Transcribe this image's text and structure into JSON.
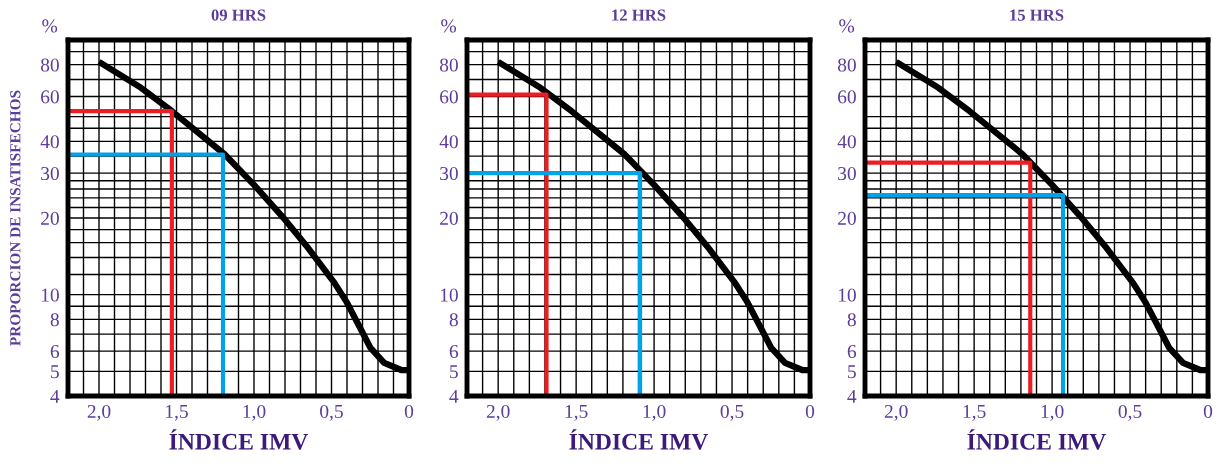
{
  "chart_data": [
    {
      "type": "line",
      "title": "09 HRS",
      "xlabel": "ÍNDICE IMV",
      "ylabel": "PROPORCION DE INSATISFECHOS",
      "annotations": [
        "%"
      ],
      "log": "y",
      "grid": true,
      "marker": "none",
      "line_style": "solid",
      "xlim": [
        2.2,
        0
      ],
      "xticks": [
        {
          "value": 2.2,
          "label": null
        },
        {
          "value": 2.1,
          "label": null
        },
        {
          "value": 2.0,
          "label": "2,0"
        },
        {
          "value": 1.9,
          "label": null
        },
        {
          "value": 1.8,
          "label": null
        },
        {
          "value": 1.7,
          "label": null
        },
        {
          "value": 1.6,
          "label": null
        },
        {
          "value": 1.5,
          "label": "1,5"
        },
        {
          "value": 1.4,
          "label": null
        },
        {
          "value": 1.3,
          "label": null
        },
        {
          "value": 1.2,
          "label": null
        },
        {
          "value": 1.1,
          "label": null
        },
        {
          "value": 1.0,
          "label": "1,0"
        },
        {
          "value": 0.9,
          "label": null
        },
        {
          "value": 0.8,
          "label": null
        },
        {
          "value": 0.7,
          "label": null
        },
        {
          "value": 0.6,
          "label": null
        },
        {
          "value": 0.5,
          "label": "0,5"
        },
        {
          "value": 0.4,
          "label": null
        },
        {
          "value": 0.3,
          "label": null
        },
        {
          "value": 0.2,
          "label": null
        },
        {
          "value": 0.1,
          "label": null
        },
        0
      ],
      "ylim": [
        4,
        100
      ],
      "yticks": [
        4,
        5,
        6,
        {
          "value": 7,
          "label": null
        },
        8,
        {
          "value": 9,
          "label": null
        },
        10,
        {
          "value": 12,
          "label": null
        },
        {
          "value": 14,
          "label": null
        },
        {
          "value": 16,
          "label": null
        },
        {
          "value": 18,
          "label": null
        },
        20,
        {
          "value": 22,
          "label": null
        },
        {
          "value": 24,
          "label": null
        },
        {
          "value": 26,
          "label": null
        },
        {
          "value": 28,
          "label": null
        },
        30,
        {
          "value": 35,
          "label": null
        },
        40,
        {
          "value": 45,
          "label": null
        },
        {
          "value": 50,
          "label": null
        },
        60,
        {
          "value": 70,
          "label": null
        },
        80,
        {
          "value": 90,
          "label": null
        }
      ],
      "series": [
        {
          "color": "#000000",
          "x": [
            2.0,
            1.73,
            1.53,
            1.19,
            1.0,
            0.8,
            0.66,
            0.48,
            0.4,
            0.31,
            0.25,
            0.16,
            0.05,
            0
          ],
          "values": [
            82,
            65,
            52.6,
            35.6,
            27,
            19.7,
            15.5,
            11.1,
            9.3,
            7.3,
            6.2,
            5.4,
            5.06,
            5.05
          ]
        },
        {
          "color": "#ed1c24",
          "x": [
            2.2,
            1.53,
            1.53
          ],
          "values": [
            52.6,
            52.6,
            4
          ]
        },
        {
          "color": "#00a2e8",
          "x": [
            2.2,
            1.2,
            1.2
          ],
          "values": [
            35.5,
            35.5,
            4
          ]
        }
      ]
    },
    {
      "type": "line",
      "title": "12 HRS",
      "xlabel": "ÍNDICE IMV",
      "annotations": [
        "%"
      ],
      "log": "y",
      "grid": true,
      "marker": "none",
      "line_style": "solid",
      "xlim": [
        2.2,
        0
      ],
      "xticks": [
        {
          "value": 2.2,
          "label": null
        },
        {
          "value": 2.1,
          "label": null
        },
        {
          "value": 2.0,
          "label": "2,0"
        },
        {
          "value": 1.9,
          "label": null
        },
        {
          "value": 1.8,
          "label": null
        },
        {
          "value": 1.7,
          "label": null
        },
        {
          "value": 1.6,
          "label": null
        },
        {
          "value": 1.5,
          "label": "1,5"
        },
        {
          "value": 1.4,
          "label": null
        },
        {
          "value": 1.3,
          "label": null
        },
        {
          "value": 1.2,
          "label": null
        },
        {
          "value": 1.1,
          "label": null
        },
        {
          "value": 1.0,
          "label": "1,0"
        },
        {
          "value": 0.9,
          "label": null
        },
        {
          "value": 0.8,
          "label": null
        },
        {
          "value": 0.7,
          "label": null
        },
        {
          "value": 0.6,
          "label": null
        },
        {
          "value": 0.5,
          "label": "0,5"
        },
        {
          "value": 0.4,
          "label": null
        },
        {
          "value": 0.3,
          "label": null
        },
        {
          "value": 0.2,
          "label": null
        },
        {
          "value": 0.1,
          "label": null
        },
        0
      ],
      "ylim": [
        4,
        100
      ],
      "yticks": [
        4,
        5,
        6,
        {
          "value": 7,
          "label": null
        },
        8,
        {
          "value": 9,
          "label": null
        },
        10,
        {
          "value": 12,
          "label": null
        },
        {
          "value": 14,
          "label": null
        },
        {
          "value": 16,
          "label": null
        },
        {
          "value": 18,
          "label": null
        },
        20,
        {
          "value": 22,
          "label": null
        },
        {
          "value": 24,
          "label": null
        },
        {
          "value": 26,
          "label": null
        },
        {
          "value": 28,
          "label": null
        },
        30,
        {
          "value": 35,
          "label": null
        },
        40,
        {
          "value": 45,
          "label": null
        },
        {
          "value": 50,
          "label": null
        },
        60,
        {
          "value": 70,
          "label": null
        },
        80,
        {
          "value": 90,
          "label": null
        }
      ],
      "series": [
        {
          "color": "#000000",
          "x": [
            2.0,
            1.73,
            1.53,
            1.19,
            1.0,
            0.8,
            0.66,
            0.48,
            0.4,
            0.31,
            0.25,
            0.16,
            0.05,
            0
          ],
          "values": [
            82,
            65,
            52.6,
            35.6,
            27,
            19.7,
            15.5,
            11.1,
            9.3,
            7.3,
            6.2,
            5.4,
            5.06,
            5.05
          ]
        },
        {
          "color": "#ed1c24",
          "x": [
            2.2,
            1.69,
            1.69
          ],
          "values": [
            61,
            61,
            4
          ]
        },
        {
          "color": "#00a2e8",
          "x": [
            2.2,
            1.09,
            1.09
          ],
          "values": [
            30,
            30,
            4
          ]
        }
      ]
    },
    {
      "type": "line",
      "title": "15 HRS",
      "xlabel": "ÍNDICE IMV",
      "annotations": [
        "%"
      ],
      "log": "y",
      "grid": true,
      "marker": "none",
      "line_style": "solid",
      "xlim": [
        2.2,
        0
      ],
      "xticks": [
        {
          "value": 2.2,
          "label": null
        },
        {
          "value": 2.1,
          "label": null
        },
        {
          "value": 2.0,
          "label": "2,0"
        },
        {
          "value": 1.9,
          "label": null
        },
        {
          "value": 1.8,
          "label": null
        },
        {
          "value": 1.7,
          "label": null
        },
        {
          "value": 1.6,
          "label": null
        },
        {
          "value": 1.5,
          "label": "1,5"
        },
        {
          "value": 1.4,
          "label": null
        },
        {
          "value": 1.3,
          "label": null
        },
        {
          "value": 1.2,
          "label": null
        },
        {
          "value": 1.1,
          "label": null
        },
        {
          "value": 1.0,
          "label": "1,0"
        },
        {
          "value": 0.9,
          "label": null
        },
        {
          "value": 0.8,
          "label": null
        },
        {
          "value": 0.7,
          "label": null
        },
        {
          "value": 0.6,
          "label": null
        },
        {
          "value": 0.5,
          "label": "0,5"
        },
        {
          "value": 0.4,
          "label": null
        },
        {
          "value": 0.3,
          "label": null
        },
        {
          "value": 0.2,
          "label": null
        },
        {
          "value": 0.1,
          "label": null
        },
        0
      ],
      "ylim": [
        4,
        100
      ],
      "yticks": [
        4,
        5,
        6,
        {
          "value": 7,
          "label": null
        },
        8,
        {
          "value": 9,
          "label": null
        },
        10,
        {
          "value": 12,
          "label": null
        },
        {
          "value": 14,
          "label": null
        },
        {
          "value": 16,
          "label": null
        },
        {
          "value": 18,
          "label": null
        },
        20,
        {
          "value": 22,
          "label": null
        },
        {
          "value": 24,
          "label": null
        },
        {
          "value": 26,
          "label": null
        },
        {
          "value": 28,
          "label": null
        },
        30,
        {
          "value": 35,
          "label": null
        },
        40,
        {
          "value": 45,
          "label": null
        },
        {
          "value": 50,
          "label": null
        },
        60,
        {
          "value": 70,
          "label": null
        },
        80,
        {
          "value": 90,
          "label": null
        }
      ],
      "series": [
        {
          "color": "#000000",
          "x": [
            2.0,
            1.73,
            1.53,
            1.19,
            1.0,
            0.8,
            0.66,
            0.48,
            0.4,
            0.31,
            0.25,
            0.16,
            0.05,
            0
          ],
          "values": [
            82,
            65,
            52.6,
            35.6,
            27,
            19.7,
            15.5,
            11.1,
            9.3,
            7.3,
            6.2,
            5.4,
            5.06,
            5.05
          ]
        },
        {
          "color": "#ed1c24",
          "x": [
            2.2,
            1.14,
            1.14
          ],
          "values": [
            33,
            33,
            4
          ]
        },
        {
          "color": "#00a2e8",
          "x": [
            2.2,
            0.93,
            0.93
          ],
          "values": [
            24.6,
            24.6,
            4
          ]
        }
      ]
    }
  ]
}
